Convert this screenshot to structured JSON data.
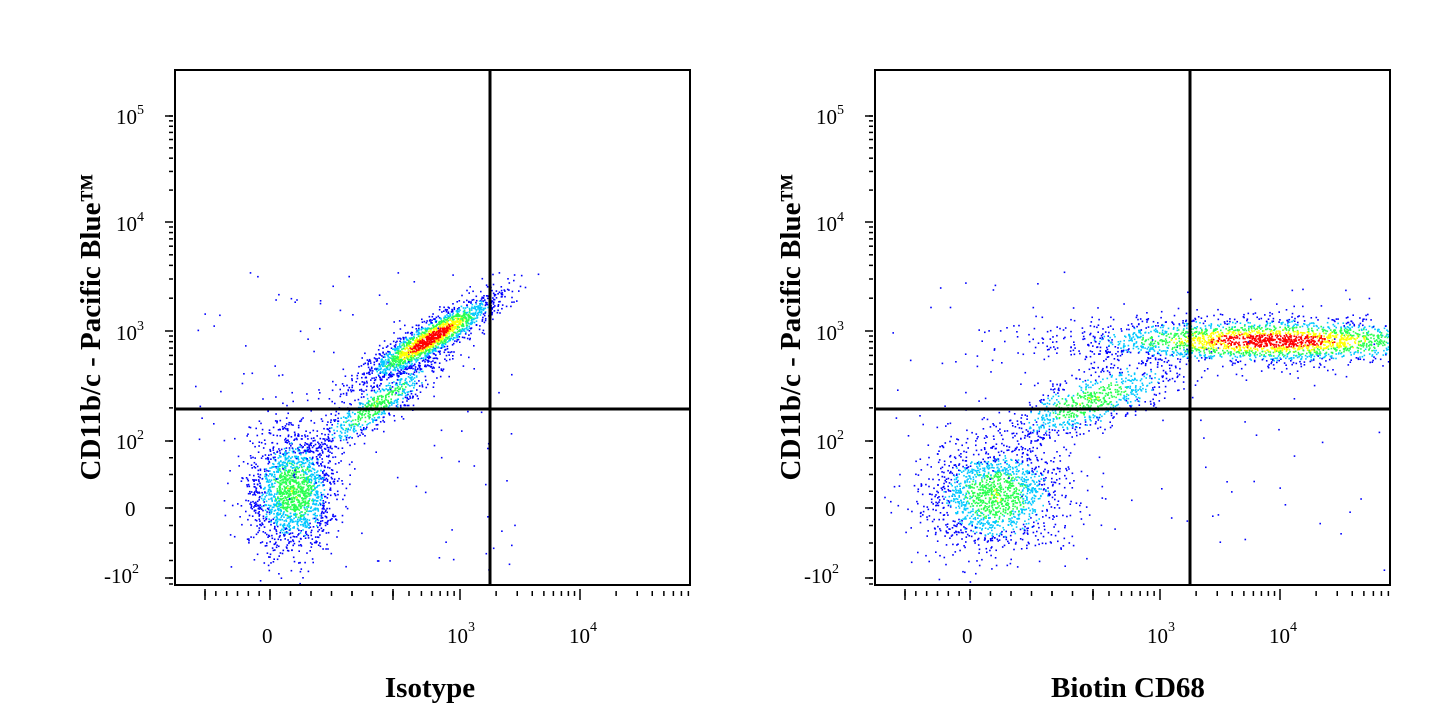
{
  "colors": {
    "density_low": "#0000ff",
    "density_mid_low": "#00c8ff",
    "density_mid": "#28ff50",
    "density_mid_high": "#ffff00",
    "density_high": "#ff0000"
  },
  "chart_data": [
    {
      "type": "scatter",
      "style": "flow-cytometry density dot plot",
      "xlabel": "Isotype",
      "ylabel": "CD11b/c - Pacific Blue™",
      "x_scale": "biexponential",
      "y_scale": "biexponential",
      "xticks": [
        {
          "value": 0,
          "label": "0"
        },
        {
          "value": 1000,
          "label": "10",
          "exp": "3"
        },
        {
          "value": 10000,
          "label": "10",
          "exp": "4"
        }
      ],
      "yticks": [
        {
          "value": -100,
          "label": "-10",
          "exp": "2"
        },
        {
          "value": 0,
          "label": "0"
        },
        {
          "value": 100,
          "label": "10",
          "exp": "2"
        },
        {
          "value": 1000,
          "label": "10",
          "exp": "3"
        },
        {
          "value": 10000,
          "label": "10",
          "exp": "4"
        },
        {
          "value": 100000,
          "label": "10",
          "exp": "5"
        }
      ],
      "quadrant_gate": {
        "x": 1700,
        "y": 200
      },
      "populations": [
        {
          "name": "",
          "x_center": 30,
          "y_center": 10,
          "spread": "wide",
          "weight": 0.35
        },
        {
          "name": "",
          "x_center": 230,
          "y_center": 250,
          "spread": "diagonal",
          "weight": 0.15
        },
        {
          "name": "",
          "x_center": 600,
          "y_center": 780,
          "spread": "dense",
          "weight": 0.5
        }
      ]
    },
    {
      "type": "scatter",
      "style": "flow-cytometry density dot plot",
      "xlabel": "Biotin CD68",
      "ylabel": "CD11b/c - Pacific Blue™",
      "x_scale": "biexponential",
      "y_scale": "biexponential",
      "xticks": [
        {
          "value": 0,
          "label": "0"
        },
        {
          "value": 1000,
          "label": "10",
          "exp": "3"
        },
        {
          "value": 10000,
          "label": "10",
          "exp": "4"
        }
      ],
      "yticks": [
        {
          "value": -100,
          "label": "-10",
          "exp": "2"
        },
        {
          "value": 0,
          "label": "0"
        },
        {
          "value": 100,
          "label": "10",
          "exp": "2"
        },
        {
          "value": 1000,
          "label": "10",
          "exp": "3"
        },
        {
          "value": 10000,
          "label": "10",
          "exp": "4"
        },
        {
          "value": 100000,
          "label": "10",
          "exp": "5"
        }
      ],
      "quadrant_gate": {
        "x": 1700,
        "y": 200
      },
      "populations": [
        {
          "name": "",
          "x_center": 40,
          "y_center": 10,
          "spread": "wide",
          "weight": 0.3
        },
        {
          "name": "",
          "x_center": 300,
          "y_center": 260,
          "spread": "diagonal",
          "weight": 0.15
        },
        {
          "name": "",
          "x_center": 4000,
          "y_center": 800,
          "spread": "horizontal",
          "weight": 0.55
        }
      ]
    }
  ]
}
